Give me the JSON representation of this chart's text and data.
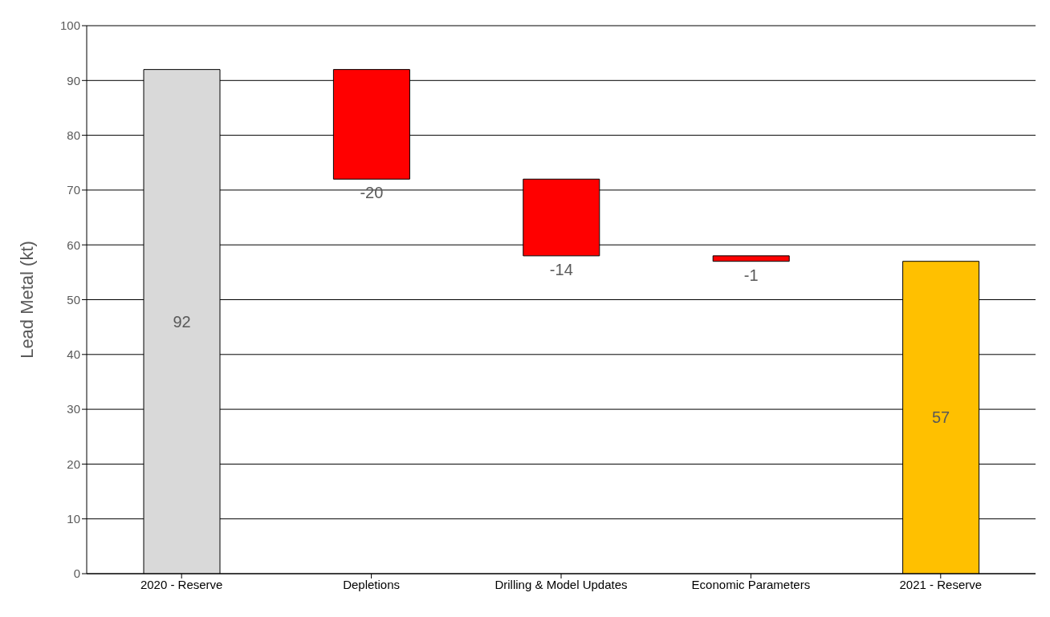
{
  "chart_data": {
    "type": "bar",
    "ylabel": "Lead Metal (kt)",
    "categories": [
      "2020 - Reserve",
      "Depletions",
      "Drilling & Model Updates",
      "Economic Parameters",
      "2021 - Reserve"
    ],
    "values": [
      92,
      -20,
      -14,
      -1,
      57
    ],
    "base": [
      0,
      92,
      72,
      58,
      0
    ],
    "colors": [
      "#d9d9d9",
      "#ff0000",
      "#ff0000",
      "#ff0000",
      "#ffc000"
    ],
    "data_labels": true,
    "ylim": [
      0,
      100
    ],
    "yticks": [
      0,
      10,
      20,
      30,
      40,
      50,
      60,
      70,
      80,
      90,
      100
    ],
    "grid": "y"
  }
}
